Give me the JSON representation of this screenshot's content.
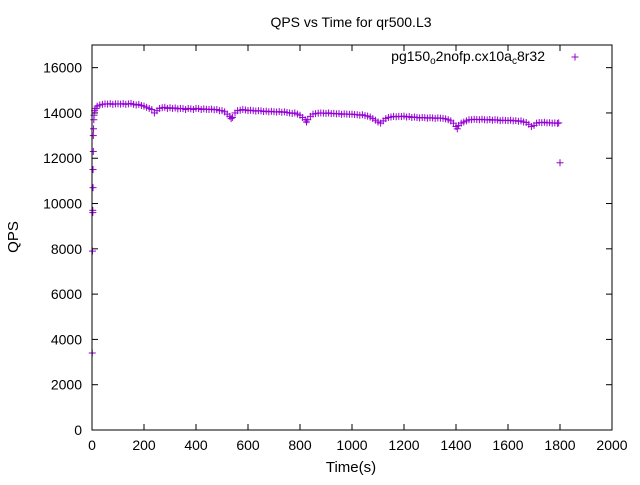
{
  "chart_data": {
    "type": "scatter",
    "title": "QPS vs Time for qr500.L3",
    "xlabel": "Time(s)",
    "ylabel": "QPS",
    "xlim": [
      0,
      2000
    ],
    "ylim": [
      0,
      17000
    ],
    "xticks": [
      0,
      200,
      400,
      600,
      800,
      1000,
      1200,
      1400,
      1600,
      1800,
      2000
    ],
    "yticks": [
      0,
      2000,
      4000,
      6000,
      8000,
      10000,
      12000,
      14000,
      16000
    ],
    "grid": false,
    "legend_position": "top-right",
    "marker": "+",
    "series": [
      {
        "name_parts": [
          "pg150",
          "o",
          "2nofp.cx10a",
          "c",
          "8r32"
        ],
        "color": "#9400d3",
        "points": [
          [
            1,
            3400
          ],
          [
            2,
            7900
          ],
          [
            3,
            9600
          ],
          [
            3,
            9700
          ],
          [
            4,
            10700
          ],
          [
            4,
            11500
          ],
          [
            5,
            12300
          ],
          [
            5,
            13000
          ],
          [
            6,
            13300
          ],
          [
            7,
            13700
          ],
          [
            8,
            13900
          ],
          [
            10,
            14100
          ],
          [
            15,
            14200
          ],
          [
            20,
            14300
          ],
          [
            30,
            14350
          ],
          [
            40,
            14380
          ],
          [
            50,
            14400
          ],
          [
            60,
            14390
          ],
          [
            70,
            14410
          ],
          [
            80,
            14380
          ],
          [
            90,
            14400
          ],
          [
            100,
            14400
          ],
          [
            110,
            14390
          ],
          [
            120,
            14410
          ],
          [
            130,
            14380
          ],
          [
            140,
            14400
          ],
          [
            150,
            14420
          ],
          [
            160,
            14380
          ],
          [
            170,
            14350
          ],
          [
            180,
            14380
          ],
          [
            190,
            14330
          ],
          [
            200,
            14300
          ],
          [
            210,
            14250
          ],
          [
            220,
            14200
          ],
          [
            230,
            14150
          ],
          [
            240,
            14000
          ],
          [
            250,
            14100
          ],
          [
            260,
            14200
          ],
          [
            270,
            14230
          ],
          [
            280,
            14250
          ],
          [
            290,
            14200
          ],
          [
            300,
            14230
          ],
          [
            310,
            14200
          ],
          [
            320,
            14220
          ],
          [
            330,
            14180
          ],
          [
            340,
            14200
          ],
          [
            350,
            14190
          ],
          [
            360,
            14150
          ],
          [
            370,
            14200
          ],
          [
            380,
            14180
          ],
          [
            390,
            14150
          ],
          [
            400,
            14200
          ],
          [
            410,
            14190
          ],
          [
            420,
            14150
          ],
          [
            430,
            14180
          ],
          [
            440,
            14160
          ],
          [
            450,
            14150
          ],
          [
            460,
            14170
          ],
          [
            470,
            14140
          ],
          [
            480,
            14150
          ],
          [
            490,
            14100
          ],
          [
            500,
            14100
          ],
          [
            510,
            14050
          ],
          [
            520,
            13950
          ],
          [
            530,
            13850
          ],
          [
            535,
            13750
          ],
          [
            540,
            13800
          ],
          [
            550,
            14000
          ],
          [
            560,
            14100
          ],
          [
            570,
            14120
          ],
          [
            580,
            14150
          ],
          [
            590,
            14130
          ],
          [
            600,
            14100
          ],
          [
            610,
            14120
          ],
          [
            620,
            14100
          ],
          [
            630,
            14080
          ],
          [
            640,
            14100
          ],
          [
            650,
            14090
          ],
          [
            660,
            14060
          ],
          [
            670,
            14080
          ],
          [
            680,
            14050
          ],
          [
            690,
            14070
          ],
          [
            700,
            14050
          ],
          [
            710,
            14040
          ],
          [
            720,
            14060
          ],
          [
            730,
            14030
          ],
          [
            740,
            14050
          ],
          [
            750,
            14020
          ],
          [
            760,
            14000
          ],
          [
            770,
            13980
          ],
          [
            780,
            14000
          ],
          [
            790,
            13950
          ],
          [
            800,
            13900
          ],
          [
            810,
            13800
          ],
          [
            820,
            13700
          ],
          [
            825,
            13600
          ],
          [
            830,
            13700
          ],
          [
            840,
            13850
          ],
          [
            850,
            13950
          ],
          [
            860,
            13970
          ],
          [
            870,
            13990
          ],
          [
            880,
            14000
          ],
          [
            890,
            13990
          ],
          [
            900,
            13980
          ],
          [
            910,
            14000
          ],
          [
            920,
            13970
          ],
          [
            930,
            13980
          ],
          [
            940,
            13960
          ],
          [
            950,
            13970
          ],
          [
            960,
            13940
          ],
          [
            970,
            13960
          ],
          [
            980,
            13950
          ],
          [
            990,
            13940
          ],
          [
            1000,
            13950
          ],
          [
            1010,
            13930
          ],
          [
            1020,
            13920
          ],
          [
            1030,
            13900
          ],
          [
            1040,
            13920
          ],
          [
            1050,
            13880
          ],
          [
            1060,
            13860
          ],
          [
            1070,
            13820
          ],
          [
            1080,
            13750
          ],
          [
            1090,
            13680
          ],
          [
            1100,
            13600
          ],
          [
            1110,
            13550
          ],
          [
            1120,
            13650
          ],
          [
            1130,
            13750
          ],
          [
            1140,
            13800
          ],
          [
            1150,
            13820
          ],
          [
            1160,
            13850
          ],
          [
            1170,
            13830
          ],
          [
            1180,
            13850
          ],
          [
            1190,
            13840
          ],
          [
            1200,
            13860
          ],
          [
            1210,
            13820
          ],
          [
            1220,
            13840
          ],
          [
            1230,
            13800
          ],
          [
            1240,
            13820
          ],
          [
            1250,
            13800
          ],
          [
            1260,
            13780
          ],
          [
            1270,
            13800
          ],
          [
            1280,
            13790
          ],
          [
            1290,
            13770
          ],
          [
            1300,
            13790
          ],
          [
            1310,
            13780
          ],
          [
            1320,
            13760
          ],
          [
            1330,
            13780
          ],
          [
            1340,
            13770
          ],
          [
            1350,
            13760
          ],
          [
            1360,
            13740
          ],
          [
            1370,
            13700
          ],
          [
            1380,
            13650
          ],
          [
            1390,
            13550
          ],
          [
            1400,
            13400
          ],
          [
            1405,
            13300
          ],
          [
            1410,
            13450
          ],
          [
            1420,
            13550
          ],
          [
            1430,
            13600
          ],
          [
            1440,
            13650
          ],
          [
            1450,
            13700
          ],
          [
            1460,
            13700
          ],
          [
            1470,
            13720
          ],
          [
            1480,
            13710
          ],
          [
            1490,
            13700
          ],
          [
            1500,
            13720
          ],
          [
            1510,
            13700
          ],
          [
            1520,
            13690
          ],
          [
            1530,
            13710
          ],
          [
            1540,
            13680
          ],
          [
            1550,
            13700
          ],
          [
            1560,
            13690
          ],
          [
            1570,
            13660
          ],
          [
            1580,
            13680
          ],
          [
            1590,
            13670
          ],
          [
            1600,
            13660
          ],
          [
            1610,
            13680
          ],
          [
            1620,
            13650
          ],
          [
            1630,
            13660
          ],
          [
            1640,
            13630
          ],
          [
            1650,
            13650
          ],
          [
            1660,
            13600
          ],
          [
            1670,
            13580
          ],
          [
            1680,
            13500
          ],
          [
            1690,
            13400
          ],
          [
            1700,
            13450
          ],
          [
            1710,
            13550
          ],
          [
            1720,
            13580
          ],
          [
            1730,
            13570
          ],
          [
            1740,
            13590
          ],
          [
            1750,
            13560
          ],
          [
            1760,
            13570
          ],
          [
            1770,
            13550
          ],
          [
            1780,
            13560
          ],
          [
            1790,
            13540
          ],
          [
            1795,
            13560
          ],
          [
            1800,
            11800
          ]
        ]
      }
    ]
  }
}
